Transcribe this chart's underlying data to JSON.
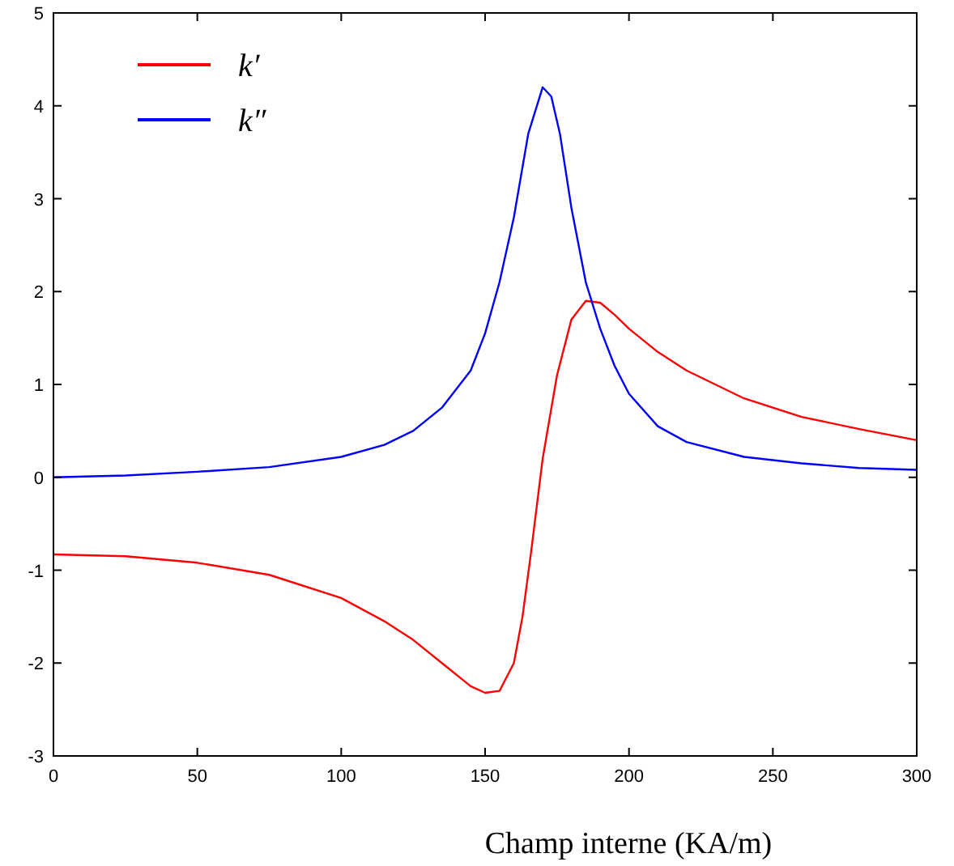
{
  "chart_data": {
    "type": "line",
    "xlabel": "Champ interne (KA/m)",
    "xlim": [
      0,
      300
    ],
    "ylim": [
      -3,
      5
    ],
    "xticks": [
      0,
      50,
      100,
      150,
      200,
      250,
      300
    ],
    "yticks": [
      -3,
      -2,
      -1,
      0,
      1,
      2,
      3,
      4,
      5
    ],
    "grid": false,
    "legend": "top left",
    "line_style": "solid",
    "series": [
      {
        "name": "k′",
        "color": "#ff0000",
        "x": [
          0,
          25,
          50,
          75,
          100,
          115,
          125,
          135,
          145,
          150,
          155,
          160,
          163,
          166,
          170,
          175,
          180,
          185,
          190,
          195,
          200,
          210,
          220,
          240,
          260,
          280,
          300
        ],
        "values": [
          -0.83,
          -0.85,
          -0.92,
          -1.05,
          -1.3,
          -1.55,
          -1.75,
          -2.0,
          -2.25,
          -2.32,
          -2.3,
          -2.0,
          -1.5,
          -0.8,
          0.2,
          1.1,
          1.7,
          1.9,
          1.88,
          1.75,
          1.6,
          1.35,
          1.15,
          0.85,
          0.65,
          0.52,
          0.4
        ]
      },
      {
        "name": "k″",
        "color": "#0000ff",
        "x": [
          0,
          25,
          50,
          75,
          100,
          115,
          125,
          135,
          145,
          150,
          155,
          160,
          165,
          170,
          173,
          176,
          180,
          185,
          190,
          195,
          200,
          210,
          220,
          240,
          260,
          280,
          300
        ],
        "values": [
          0,
          0.02,
          0.06,
          0.11,
          0.22,
          0.35,
          0.5,
          0.75,
          1.15,
          1.55,
          2.1,
          2.8,
          3.7,
          4.2,
          4.1,
          3.7,
          2.9,
          2.1,
          1.6,
          1.2,
          0.9,
          0.55,
          0.38,
          0.22,
          0.15,
          0.1,
          0.08
        ]
      }
    ]
  }
}
